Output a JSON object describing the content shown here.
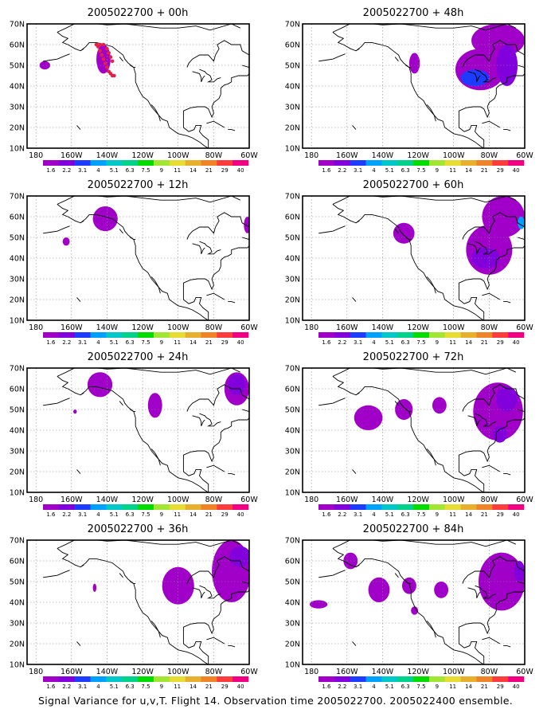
{
  "figure": {
    "caption": "Signal Variance for u,v,T. Flight 14. Observation time 2005022700. 2005022400 ensemble.",
    "lon_labels": [
      "180",
      "160W",
      "140W",
      "120W",
      "100W",
      "80W",
      "60W"
    ],
    "lat_labels": [
      "10N",
      "20N",
      "30N",
      "40N",
      "50N",
      "60N",
      "70N"
    ],
    "colorbar": {
      "labels": [
        "1.6",
        "2.2",
        "3.1",
        "4",
        "5.1",
        "6.3",
        "7.5",
        "9",
        "11",
        "14",
        "21",
        "29",
        "40"
      ],
      "colors": [
        "#a000c8",
        "#8200dc",
        "#1e3cff",
        "#00a0ff",
        "#00c8c8",
        "#00d28c",
        "#00dc00",
        "#a0e632",
        "#e6dc32",
        "#e6af2d",
        "#f08228",
        "#fa3c3c",
        "#f00082"
      ]
    },
    "panels": [
      {
        "id": "p00",
        "title": "2005022700 + 00h",
        "blobs": [
          {
            "lon": -175,
            "lat": 50,
            "rx": 3,
            "ry": 2,
            "level": 0
          },
          {
            "lon": -142,
            "lat": 53,
            "rx": 4,
            "ry": 7,
            "level": 0
          }
        ],
        "points": [
          [
            -145,
            59
          ],
          [
            -144,
            57
          ],
          [
            -143,
            55
          ],
          [
            -142,
            53
          ],
          [
            -141,
            51
          ],
          [
            -140,
            49
          ],
          [
            -139,
            47
          ],
          [
            -138,
            46
          ],
          [
            -137,
            45
          ],
          [
            -136,
            45
          ],
          [
            -146,
            60
          ],
          [
            -144,
            60
          ],
          [
            -142,
            60
          ],
          [
            -140,
            58
          ],
          [
            -139,
            56
          ],
          [
            -138,
            54
          ],
          [
            -137,
            52
          ]
        ]
      },
      {
        "id": "p48",
        "title": "2005022700 + 48h",
        "blobs": [
          {
            "lon": -122,
            "lat": 51,
            "rx": 3,
            "ry": 5,
            "level": 0
          },
          {
            "lon": -85,
            "lat": 48,
            "rx": 14,
            "ry": 10,
            "level": 0
          },
          {
            "lon": -75,
            "lat": 62,
            "rx": 15,
            "ry": 8,
            "level": 0
          },
          {
            "lon": -88,
            "lat": 44,
            "rx": 8,
            "ry": 4,
            "level": 2
          },
          {
            "lon": -70,
            "lat": 50,
            "rx": 6,
            "ry": 10,
            "level": 1
          }
        ],
        "points": []
      },
      {
        "id": "p12",
        "title": "2005022700 + 12h",
        "blobs": [
          {
            "lon": -141,
            "lat": 59,
            "rx": 7,
            "ry": 6,
            "level": 0
          },
          {
            "lon": -163,
            "lat": 48,
            "rx": 2,
            "ry": 2,
            "level": 0
          },
          {
            "lon": -61,
            "lat": 56,
            "rx": 2,
            "ry": 4,
            "level": 0
          }
        ],
        "points": []
      },
      {
        "id": "p60",
        "title": "2005022700 + 60h",
        "blobs": [
          {
            "lon": -128,
            "lat": 52,
            "rx": 6,
            "ry": 5,
            "level": 0
          },
          {
            "lon": -80,
            "lat": 44,
            "rx": 13,
            "ry": 12,
            "level": 0
          },
          {
            "lon": -72,
            "lat": 60,
            "rx": 12,
            "ry": 10,
            "level": 0
          },
          {
            "lon": -82,
            "lat": 40,
            "rx": 8,
            "ry": 5,
            "level": 1
          },
          {
            "lon": -62,
            "lat": 57,
            "rx": 2,
            "ry": 3,
            "level": 3
          }
        ],
        "points": []
      },
      {
        "id": "p24",
        "title": "2005022700 + 24h",
        "blobs": [
          {
            "lon": -144,
            "lat": 62,
            "rx": 7,
            "ry": 6,
            "level": 0
          },
          {
            "lon": -113,
            "lat": 52,
            "rx": 4,
            "ry": 6,
            "level": 0
          },
          {
            "lon": -67,
            "lat": 60,
            "rx": 7,
            "ry": 8,
            "level": 0
          },
          {
            "lon": -67,
            "lat": 62,
            "rx": 5,
            "ry": 5,
            "level": 1
          },
          {
            "lon": -158,
            "lat": 49,
            "rx": 1,
            "ry": 1,
            "level": 0
          }
        ],
        "points": []
      },
      {
        "id": "p72",
        "title": "2005022700 + 72h",
        "blobs": [
          {
            "lon": -148,
            "lat": 46,
            "rx": 8,
            "ry": 6,
            "level": 0
          },
          {
            "lon": -128,
            "lat": 50,
            "rx": 5,
            "ry": 5,
            "level": 0
          },
          {
            "lon": -75,
            "lat": 49,
            "rx": 14,
            "ry": 14,
            "level": 0
          },
          {
            "lon": -108,
            "lat": 52,
            "rx": 4,
            "ry": 4,
            "level": 0
          },
          {
            "lon": -70,
            "lat": 55,
            "rx": 6,
            "ry": 6,
            "level": 1
          },
          {
            "lon": -74,
            "lat": 38,
            "rx": 4,
            "ry": 4,
            "level": 1
          }
        ],
        "points": []
      },
      {
        "id": "p36",
        "title": "2005022700 + 36h",
        "blobs": [
          {
            "lon": -100,
            "lat": 48,
            "rx": 9,
            "ry": 9,
            "level": 0
          },
          {
            "lon": -70,
            "lat": 55,
            "rx": 11,
            "ry": 15,
            "level": 0
          },
          {
            "lon": -147,
            "lat": 47,
            "rx": 1,
            "ry": 2,
            "level": 0
          },
          {
            "lon": -65,
            "lat": 62,
            "rx": 6,
            "ry": 5,
            "level": 1
          }
        ],
        "points": []
      },
      {
        "id": "p84",
        "title": "2005022700 + 84h",
        "blobs": [
          {
            "lon": -158,
            "lat": 60,
            "rx": 4,
            "ry": 4,
            "level": 0
          },
          {
            "lon": -142,
            "lat": 46,
            "rx": 6,
            "ry": 6,
            "level": 0
          },
          {
            "lon": -125,
            "lat": 48,
            "rx": 4,
            "ry": 4,
            "level": 0
          },
          {
            "lon": -107,
            "lat": 46,
            "rx": 4,
            "ry": 4,
            "level": 0
          },
          {
            "lon": -176,
            "lat": 39,
            "rx": 5,
            "ry": 2,
            "level": 0
          },
          {
            "lon": -122,
            "lat": 36,
            "rx": 2,
            "ry": 2,
            "level": 0
          },
          {
            "lon": -73,
            "lat": 50,
            "rx": 13,
            "ry": 14,
            "level": 0
          },
          {
            "lon": -63,
            "lat": 55,
            "rx": 3,
            "ry": 5,
            "level": 1
          }
        ],
        "points": []
      }
    ]
  }
}
